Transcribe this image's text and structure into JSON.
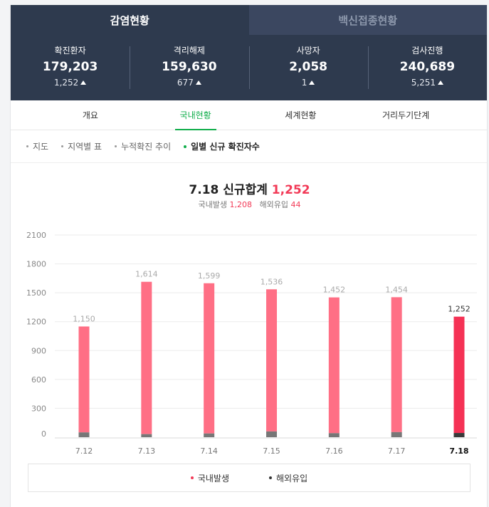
{
  "top_tabs": [
    {
      "label": "감염현황",
      "active": true
    },
    {
      "label": "백신접종현황",
      "active": false
    }
  ],
  "stats": [
    {
      "label": "확진환자",
      "value": "179,203",
      "delta": "1,252"
    },
    {
      "label": "격리해제",
      "value": "159,630",
      "delta": "677"
    },
    {
      "label": "사망자",
      "value": "2,058",
      "delta": "1"
    },
    {
      "label": "검사진행",
      "value": "240,689",
      "delta": "5,251"
    }
  ],
  "sub_tabs": [
    {
      "label": "개요",
      "active": false
    },
    {
      "label": "국내현황",
      "active": true
    },
    {
      "label": "세계현황",
      "active": false
    },
    {
      "label": "거리두기단계",
      "active": false
    }
  ],
  "sections": [
    {
      "label": "지도",
      "active": false
    },
    {
      "label": "지역별 표",
      "active": false
    },
    {
      "label": "누적확진 추이",
      "active": false
    },
    {
      "label": "일별 신규 확진자수",
      "active": true
    }
  ],
  "summary": {
    "date": "7.18",
    "title_text": "신규합계",
    "total": "1,252",
    "domestic_label": "국내발생",
    "domestic_value": "1,208",
    "overseas_label": "해외유입",
    "overseas_value": "44"
  },
  "chart_data": {
    "type": "bar",
    "categories": [
      "7.12",
      "7.13",
      "7.14",
      "7.15",
      "7.16",
      "7.17",
      "7.18"
    ],
    "series": [
      {
        "name": "국내발생",
        "values": [
          1100,
          1582,
          1560,
          1476,
          1410,
          1401,
          1208
        ],
        "color": "#ff6f85"
      },
      {
        "name": "해외유입",
        "values": [
          50,
          32,
          39,
          60,
          42,
          53,
          44
        ],
        "color": "#777777"
      }
    ],
    "totals_labels": [
      "1,150",
      "1,614",
      "1,599",
      "1,536",
      "1,452",
      "1,454",
      "1,252"
    ],
    "totals": [
      1150,
      1614,
      1599,
      1536,
      1452,
      1454,
      1252
    ],
    "yticks": [
      0,
      300,
      600,
      900,
      1200,
      1500,
      1800,
      2100
    ],
    "ylim": [
      0,
      2100
    ],
    "highlight_index": 6,
    "highlight_color": "#f53255",
    "highlight_overseas_color": "#3a3a3a"
  },
  "legend": [
    {
      "label": "국내발생",
      "color": "#f23a57"
    },
    {
      "label": "해외유입",
      "color": "#333333"
    }
  ]
}
